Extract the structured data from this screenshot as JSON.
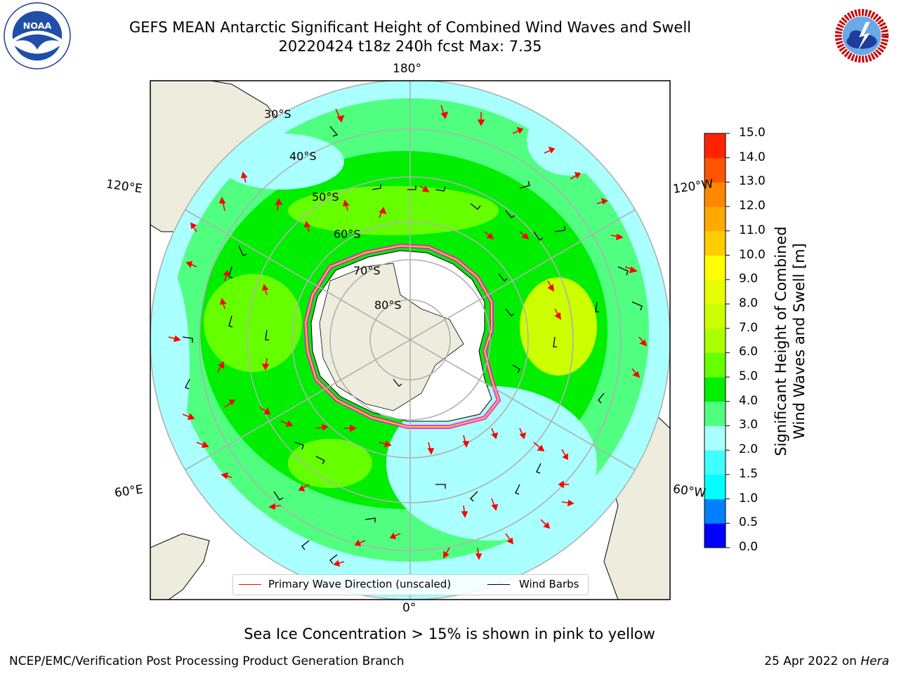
{
  "header": {
    "title_line1": "GEFS MEAN Antarctic Significant Height of Combined Wind Waves and Swell",
    "title_line2": "20220424 t18z 240h fcst   Max: 7.35"
  },
  "logos": {
    "left": "noaa-logo",
    "left_text": "NOAA",
    "left_ring_text": "NATIONAL OCEANIC AND ATMOSPHERIC ADMINISTRATION · U.S. DEPARTMENT OF COMMERCE",
    "right": "national-weather-service-logo",
    "right_ring_text": "NATIONAL WEATHER SERVICE"
  },
  "map": {
    "projection": "south-polar-stereographic",
    "longitude_labels": {
      "top": "180°",
      "bottom": "0°",
      "upper_left": "120°E",
      "upper_right": "120°W",
      "lower_left": "60°E",
      "lower_right": "60°W"
    },
    "latitude_labels": [
      "30°S",
      "40°S",
      "50°S",
      "60°S",
      "70°S",
      "80°S"
    ],
    "land_color": "#eeeddd",
    "ocean_base_color": "#aaffff"
  },
  "legend": {
    "wave_direction_label": "Primary Wave Direction (unscaled)",
    "wind_barbs_label": "Wind Barbs",
    "wave_color": "#ff0000",
    "barb_color": "#000000"
  },
  "colorbar": {
    "title_line1": "Significant Height of Combined",
    "title_line2": "Wind Waves and Swell [m]",
    "ticks": [
      "0.0",
      "0.5",
      "1.0",
      "1.5",
      "2.0",
      "3.0",
      "4.0",
      "5.0",
      "6.0",
      "7.0",
      "8.0",
      "9.0",
      "10.0",
      "11.0",
      "12.0",
      "13.0",
      "14.0",
      "15.0"
    ],
    "colors": [
      "#0000ff",
      "#0080ff",
      "#00ffff",
      "#40ffff",
      "#aaffff",
      "#50ff80",
      "#00ee00",
      "#66ff00",
      "#aaff00",
      "#ccff00",
      "#e6ff00",
      "#ffff00",
      "#ffcc00",
      "#ffaa00",
      "#ff8800",
      "#ff5500",
      "#ff2200"
    ]
  },
  "sea_ice_note": "Sea Ice Concentration > 15% is shown in pink to yellow",
  "footer": {
    "left": "NCEP/EMC/Verification Post Processing Product Generation Branch",
    "right_date": "25 Apr 2022 on ",
    "right_machine": "Hera"
  }
}
